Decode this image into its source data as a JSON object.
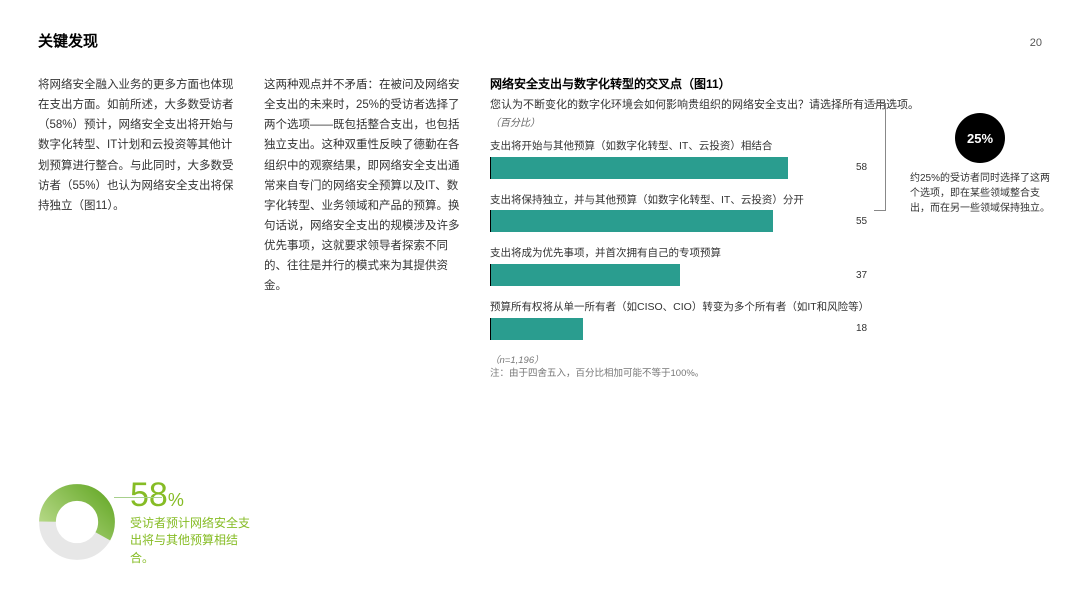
{
  "header": {
    "title": "关键发现",
    "page": "20"
  },
  "col_left": "将网络安全融入业务的更多方面也体现在支出方面。如前所述，大多数受访者（58%）预计，网络安全支出将开始与数字化转型、IT计划和云投资等其他计划预算进行整合。与此同时，大多数受访者（55%）也认为网络安全支出将保持独立（图11）。",
  "col_mid": "这两种观点并不矛盾：在被问及网络安全支出的未来时，25%的受访者选择了两个选项——既包括整合支出，也包括独立支出。这种双重性反映了德勤在各组织中的观察结果，即网络安全支出通常来自专门的网络安全预算以及IT、数字化转型、业务领域和产品的预算。换句话说，网络安全支出的规模涉及许多优先事项，这就要求领导者探索不同的、往往是并行的模式来为其提供资金。",
  "chart": {
    "title": "网络安全支出与数字化转型的交叉点（图11）",
    "subtitle": "您认为不断变化的数字化环境会如何影响贵组织的网络安全支出？请选择所有适用选项。",
    "unit": "（百分比）",
    "bar_color": "#2a9d8f",
    "max": 70,
    "bars": [
      {
        "label": "支出将开始与其他预算（如数字化转型、IT、云投资）相结合",
        "value": 58
      },
      {
        "label": "支出将保持独立，并与其他预算（如数字化转型、IT、云投资）分开",
        "value": 55
      },
      {
        "label": "支出将成为优先事项，并首次拥有自己的专项预算",
        "value": 37
      },
      {
        "label": "预算所有权将从单一所有者（如CISO、CIO）转变为多个所有者（如IT和风险等）",
        "value": 18
      }
    ],
    "note_n": "（n=1,196）",
    "note": "注：由于四舍五入，百分比相加可能不等于100%。"
  },
  "callout": {
    "badge": "25%",
    "text": "约25%的受访者同时选择了这两个选项，即在某些领域整合支出，而在另一些领域保持独立。"
  },
  "stat": {
    "pct": 58,
    "pct_label": "58",
    "pct_suffix": "%",
    "text": "受访者预计网络安全支出将与其他预算相结合。",
    "arc_color": "#86bc25",
    "ring_color": "#e7e7e7"
  }
}
